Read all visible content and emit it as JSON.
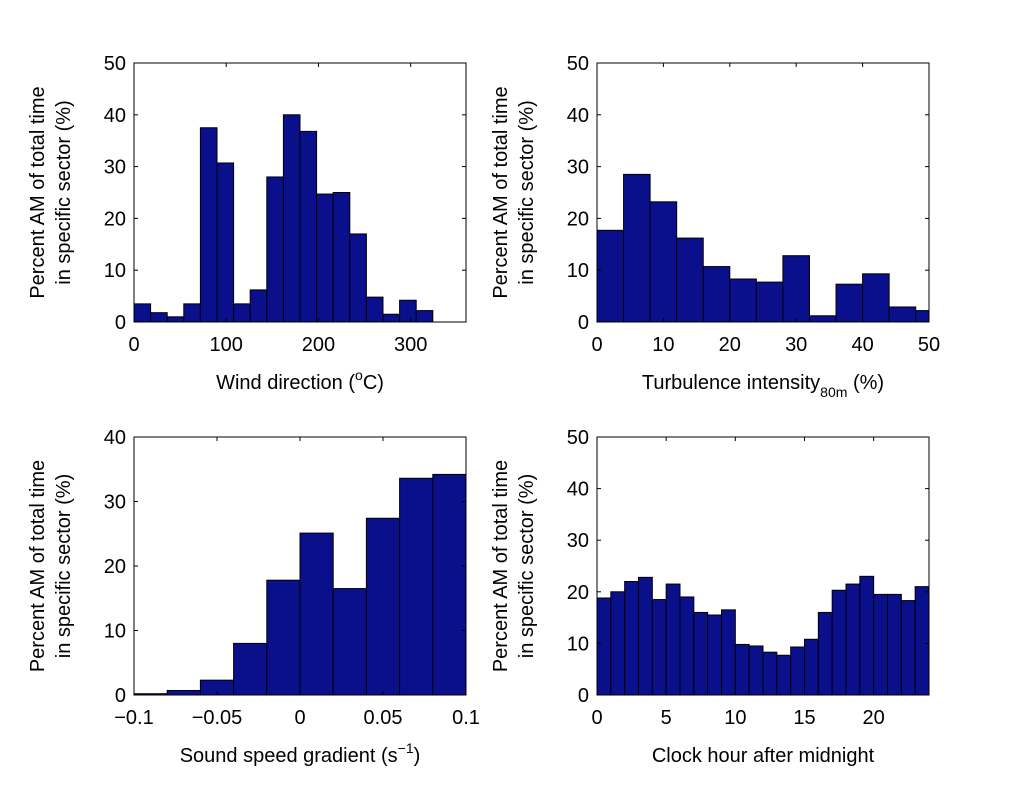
{
  "figure": {
    "ylabel_line1": "Percent AM of total time",
    "ylabel_line2": "in specific sector (%)"
  },
  "bar_color": "#0a0f8c",
  "chart_data": [
    {
      "type": "bar",
      "xlabel_main": "Wind direction (",
      "xlabel_sup": "o",
      "xlabel_tail": "C)",
      "xlim": [
        0,
        360
      ],
      "ylim": [
        0,
        50
      ],
      "xticks": [
        0,
        100,
        200,
        300
      ],
      "yticks": [
        0,
        10,
        20,
        30,
        40,
        50
      ],
      "bin_width": 18,
      "bin_start": 0,
      "values": [
        3.5,
        1.8,
        1.0,
        3.5,
        37.5,
        30.7,
        3.5,
        6.2,
        28.0,
        40.0,
        36.8,
        24.7,
        25.0,
        17.0,
        4.8,
        1.5,
        4.2,
        2.2
      ]
    },
    {
      "type": "bar",
      "xlabel_main": "Turbulence intensity",
      "xlabel_sub": "80m",
      "xlabel_tail": " (%)",
      "xlim": [
        0,
        50
      ],
      "ylim": [
        0,
        50
      ],
      "xticks": [
        0,
        10,
        20,
        30,
        40,
        50
      ],
      "yticks": [
        0,
        10,
        20,
        30,
        40,
        50
      ],
      "bin_width": 4,
      "bin_start": 0,
      "values": [
        17.7,
        28.5,
        23.2,
        16.2,
        10.7,
        8.3,
        7.7,
        12.8,
        1.2,
        7.3,
        9.3,
        2.9,
        2.2
      ]
    },
    {
      "type": "bar",
      "xlabel_main": "Sound speed gradient (s",
      "xlabel_sup": "−1",
      "xlabel_tail": ")",
      "xlim": [
        -0.1,
        0.1
      ],
      "ylim": [
        0,
        40
      ],
      "xticks": [
        -0.1,
        -0.05,
        0,
        0.05,
        0.1
      ],
      "xticklabels": [
        "−0.1",
        "−0.05",
        "0",
        "0.05",
        "0.1"
      ],
      "yticks": [
        0,
        10,
        20,
        30,
        40
      ],
      "bin_width": 0.02,
      "bin_start": -0.1,
      "values": [
        0.2,
        0.7,
        2.3,
        8.0,
        17.8,
        25.1,
        16.5,
        27.4,
        33.6,
        34.2
      ]
    },
    {
      "type": "bar",
      "xlabel_main": "Clock hour after midnight",
      "xlim": [
        0,
        24
      ],
      "ylim": [
        0,
        50
      ],
      "xticks": [
        0,
        5,
        10,
        15,
        20
      ],
      "yticks": [
        0,
        10,
        20,
        30,
        40,
        50
      ],
      "bin_width": 1,
      "bin_start": 0,
      "values": [
        18.8,
        20.0,
        22.0,
        22.8,
        18.5,
        21.5,
        19.0,
        16.0,
        15.5,
        16.5,
        9.8,
        9.5,
        8.3,
        7.7,
        9.3,
        10.8,
        16.0,
        20.3,
        21.5,
        23.0,
        19.5,
        19.5,
        18.3,
        21.0
      ]
    }
  ]
}
